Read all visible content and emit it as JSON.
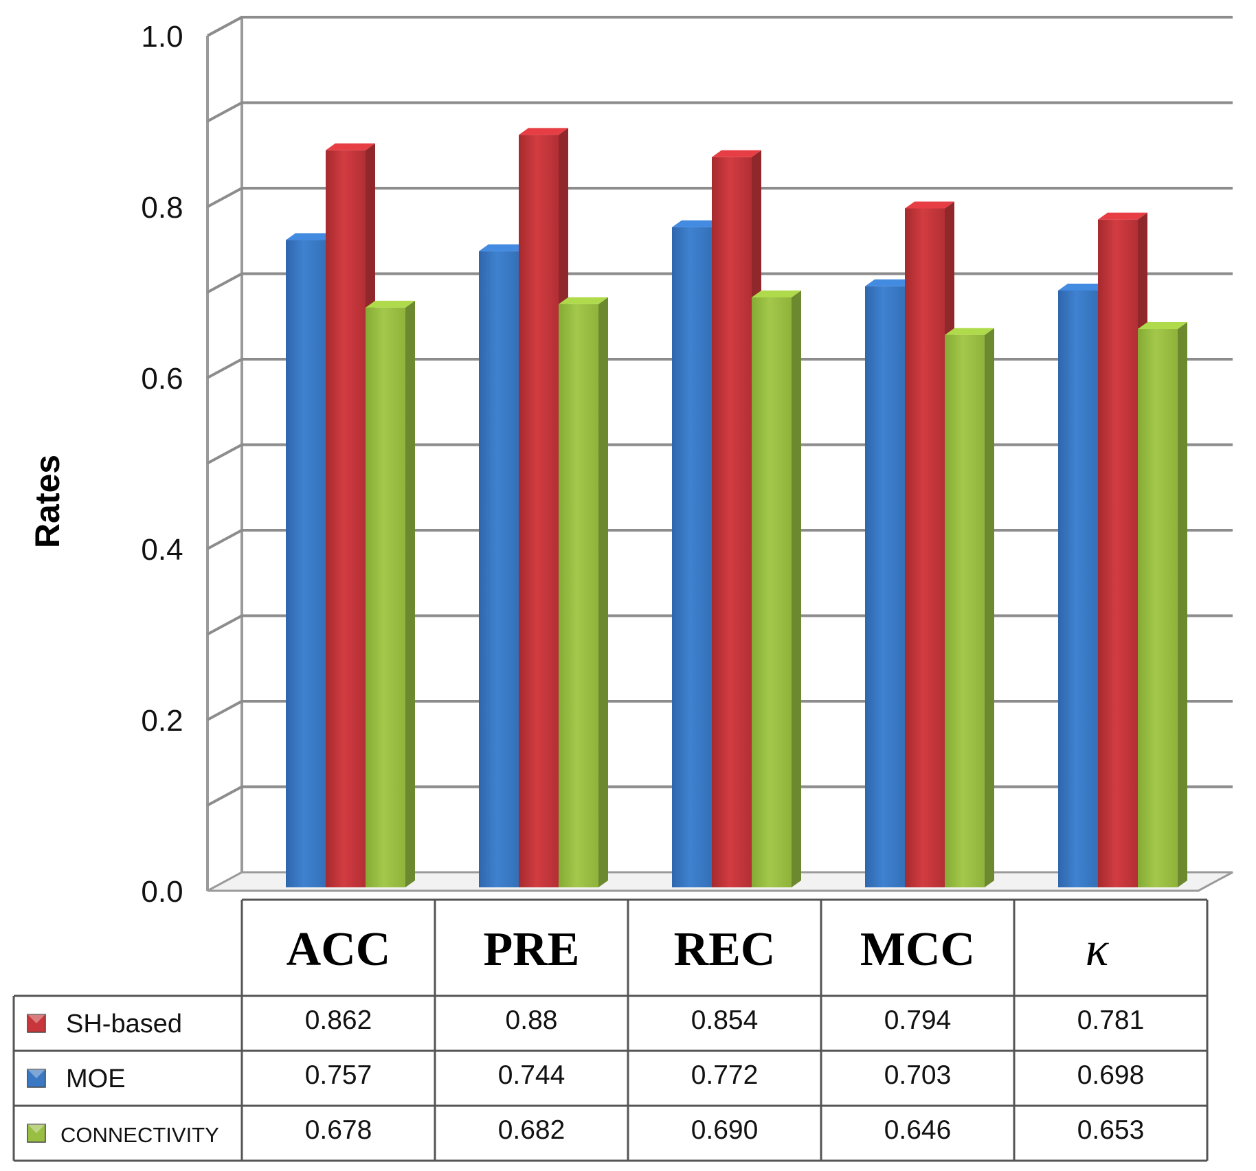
{
  "chart_data": {
    "type": "bar",
    "title": "",
    "xlabel": "",
    "ylabel": "Rates",
    "ylim": [
      0,
      1.0
    ],
    "yticks": [
      "1.0",
      "0.8",
      "0.6",
      "0.4",
      "0.2",
      "0.0"
    ],
    "ytick_values": [
      1.0,
      0.8,
      0.6,
      0.4,
      0.2,
      0.0
    ],
    "gridline_values": [
      0.1,
      0.2,
      0.3,
      0.4,
      0.5,
      0.6,
      0.7,
      0.8,
      0.9,
      1.0
    ],
    "categories": [
      "ACC",
      "PRE",
      "REC",
      "MCC",
      "κ"
    ],
    "bar_order": [
      "MOE",
      "SH-based",
      "CONNECTIVITY"
    ],
    "series": [
      {
        "name": "SH-based",
        "color": "#c8363b",
        "values": [
          0.862,
          0.88,
          0.854,
          0.794,
          0.781
        ],
        "labels": [
          "0.862",
          "0.88",
          "0.854",
          "0.794",
          "0.781"
        ]
      },
      {
        "name": "MOE",
        "color": "#3a78c4",
        "values": [
          0.757,
          0.744,
          0.772,
          0.703,
          0.698
        ],
        "labels": [
          "0.757",
          "0.744",
          "0.772",
          "0.703",
          "0.698"
        ]
      },
      {
        "name": "CONNECTIVITY",
        "color": "#98be42",
        "values": [
          0.678,
          0.682,
          0.69,
          0.646,
          0.653
        ],
        "labels": [
          "0.678",
          "0.682",
          "0.690",
          "0.646",
          "0.653"
        ]
      }
    ],
    "legend_placement": "data-table"
  }
}
